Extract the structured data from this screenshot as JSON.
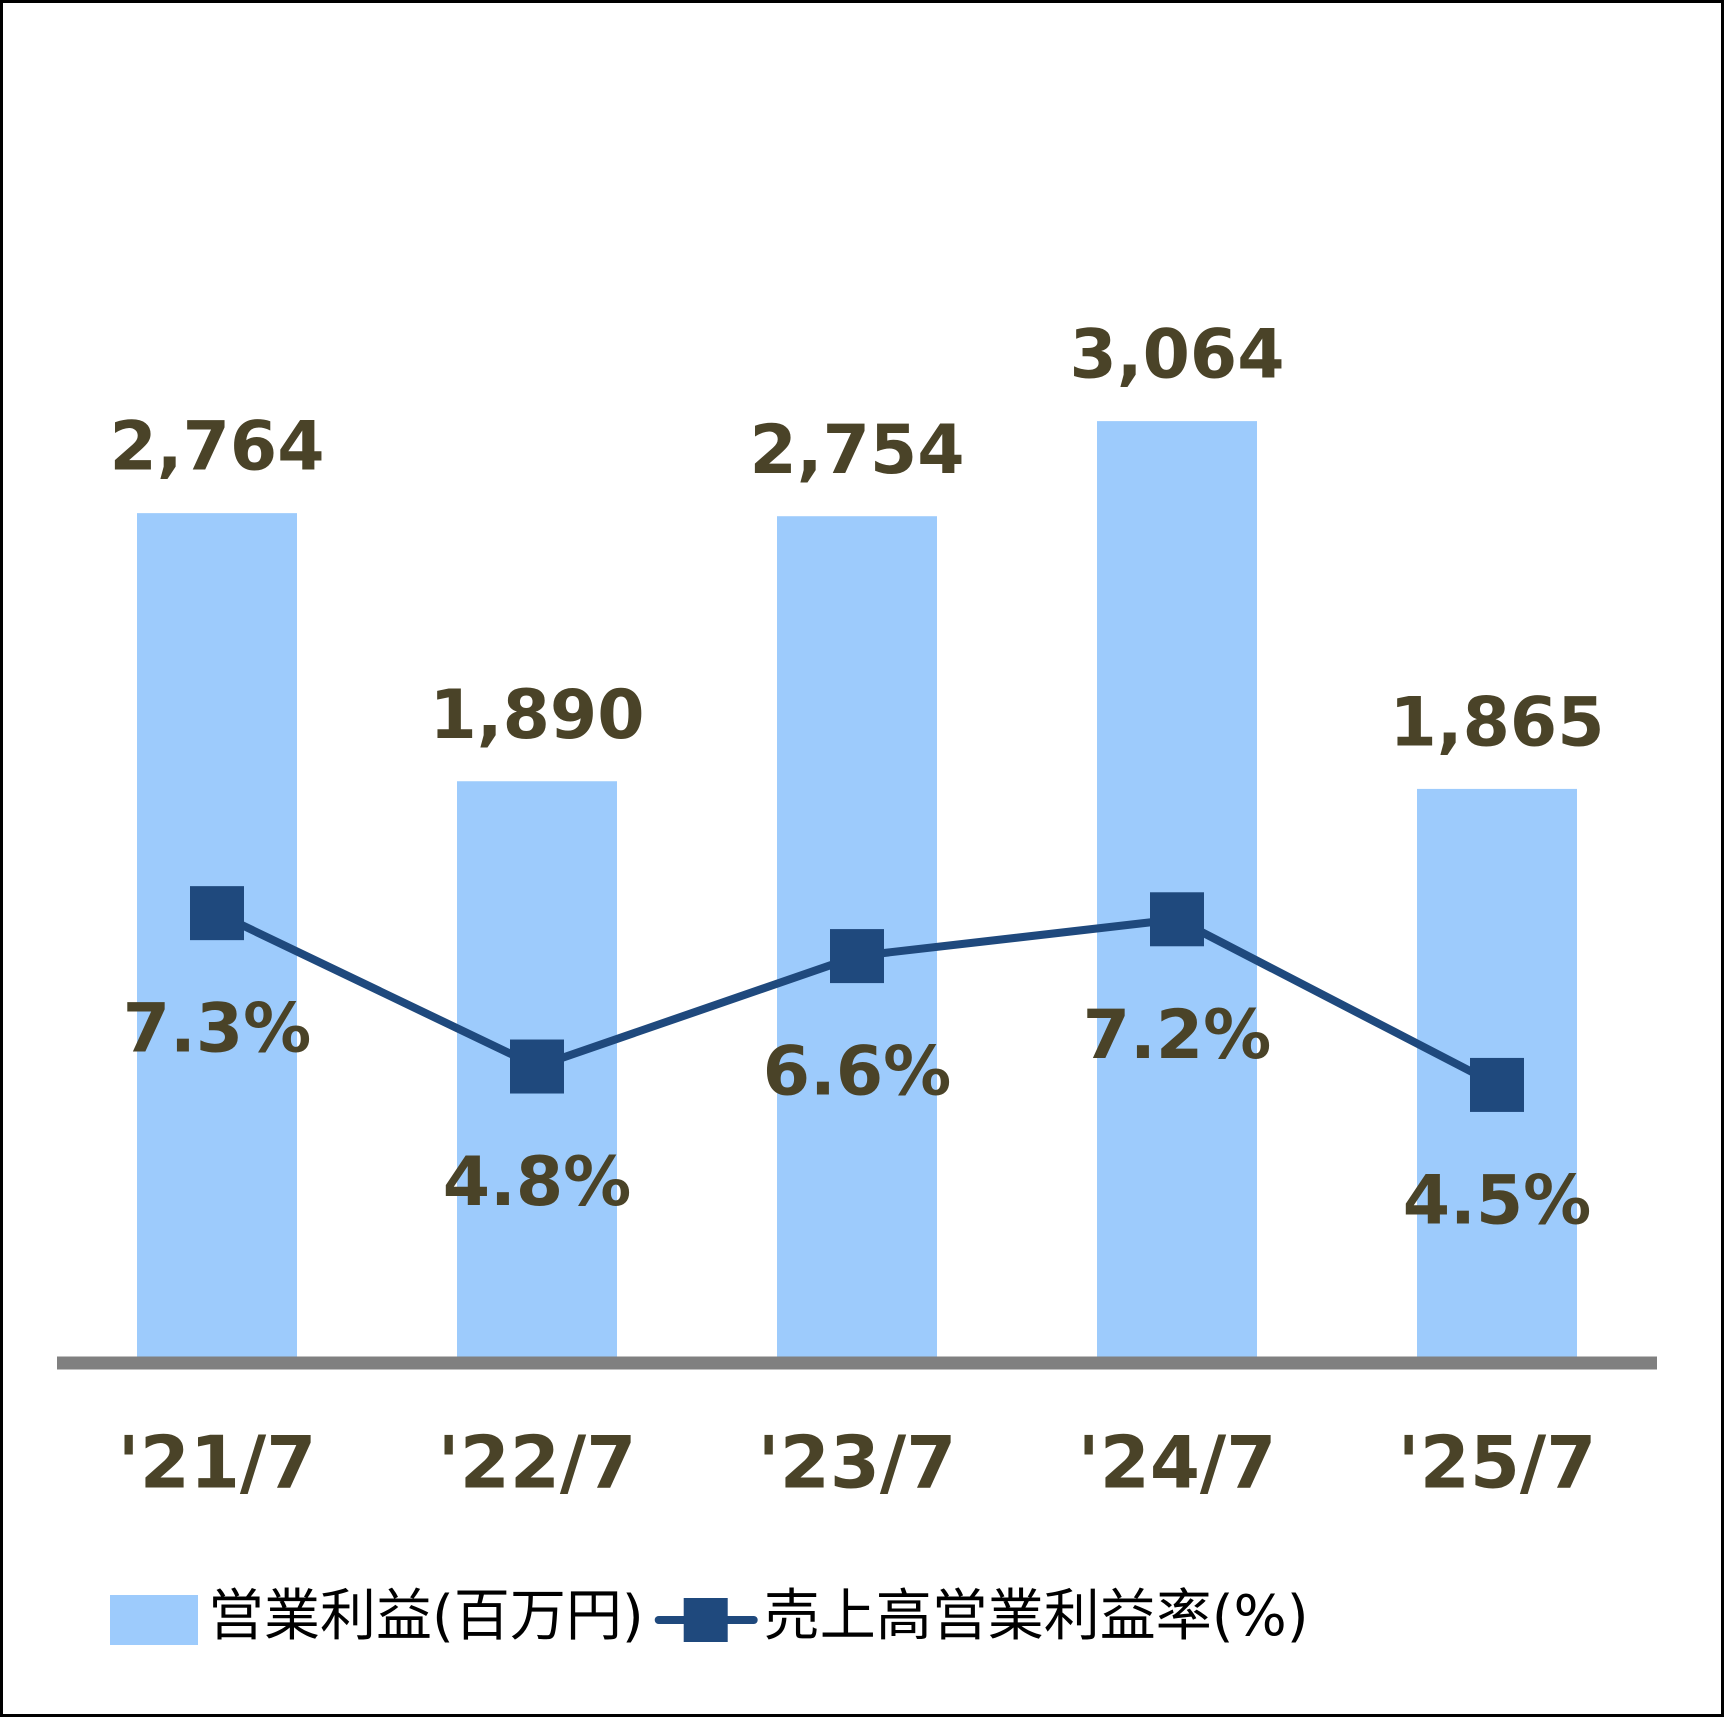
{
  "chart_data": {
    "type": "bar-line",
    "categories": [
      "'21/7",
      "'22/7",
      "'23/7",
      "'24/7",
      "'25/7"
    ],
    "series": [
      {
        "name": "営業利益(百万円)",
        "type": "bar",
        "color": "#9dcbfc",
        "values": [
          2764,
          1890,
          2754,
          3064,
          1865
        ],
        "value_labels": [
          "2,764",
          "1,890",
          "2,754",
          "3,064",
          "1,865"
        ]
      },
      {
        "name": "売上高営業利益率(%)",
        "type": "line",
        "axis": "y2",
        "color": "#1f497d",
        "values": [
          7.3,
          4.8,
          6.6,
          7.2,
          4.5
        ],
        "value_labels": [
          "7.3%",
          "4.8%",
          "6.6%",
          "7.2%",
          "4.5%"
        ]
      }
    ],
    "ylim": [
      0,
      4000
    ],
    "y2lim": [
      0,
      20
    ],
    "legend": "bottom"
  }
}
